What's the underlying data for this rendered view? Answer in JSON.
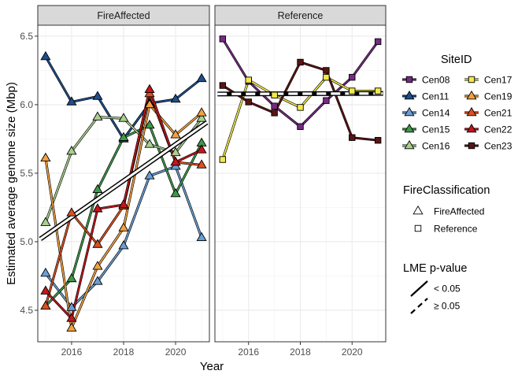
{
  "chart_data": {
    "type": "line",
    "xlabel": "Year",
    "ylabel": "Estimated average genome size (Mbp)",
    "xlim": [
      2014.7,
      2021.3
    ],
    "ylim": [
      4.27,
      6.58
    ],
    "x_ticks": [
      2016,
      2018,
      2020
    ],
    "y_ticks": [
      4.5,
      5.0,
      5.5,
      6.0,
      6.5
    ],
    "x_tick_labels": [
      "2016",
      "2018",
      "2020"
    ],
    "y_tick_labels": [
      "4.5",
      "5.0",
      "5.5",
      "6.0",
      "6.5"
    ],
    "grid": true,
    "panels": [
      {
        "name": "FireAffected",
        "shape": "triangle",
        "fit": {
          "x": [
            2014.8,
            2021.2
          ],
          "y": [
            5.02,
            5.87
          ],
          "significant": true
        },
        "series": [
          {
            "name": "Cen11",
            "x": [
              2015,
              2016,
              2017,
              2018,
              2019,
              2020,
              2021
            ],
            "y": [
              6.35,
              6.02,
              6.06,
              5.75,
              6.01,
              6.04,
              6.19
            ]
          },
          {
            "name": "Cen14",
            "x": [
              2015,
              2016,
              2017,
              2018,
              2019,
              2020,
              2021
            ],
            "y": [
              4.77,
              4.52,
              4.71,
              4.97,
              5.48,
              5.55,
              5.03
            ]
          },
          {
            "name": "Cen15",
            "x": [
              2015,
              2016,
              2017,
              2018,
              2019,
              2020,
              2021
            ],
            "y": [
              4.53,
              4.73,
              5.38,
              5.76,
              5.85,
              5.35,
              5.72
            ]
          },
          {
            "name": "Cen16",
            "x": [
              2015,
              2016,
              2017,
              2018,
              2019,
              2020,
              2021
            ],
            "y": [
              5.14,
              5.66,
              5.91,
              5.9,
              5.71,
              5.65,
              5.9
            ]
          },
          {
            "name": "Cen19",
            "x": [
              2015,
              2016,
              2017,
              2018,
              2019,
              2020,
              2021
            ],
            "y": [
              5.61,
              4.37,
              4.82,
              5.1,
              6.0,
              5.78,
              5.94
            ]
          },
          {
            "name": "Cen21",
            "x": [
              2015,
              2016,
              2017,
              2018,
              2019,
              2020,
              2021
            ],
            "y": [
              4.53,
              5.21,
              4.98,
              5.26,
              6.08,
              5.58,
              5.56
            ]
          },
          {
            "name": "Cen22",
            "x": [
              2015,
              2016,
              2017,
              2018,
              2019,
              2020,
              2021
            ],
            "y": [
              4.64,
              4.44,
              5.24,
              5.27,
              6.11,
              5.58,
              5.67
            ]
          }
        ]
      },
      {
        "name": "Reference",
        "shape": "square",
        "fit": {
          "x": [
            2014.8,
            2021.2
          ],
          "y": [
            6.078,
            6.082
          ],
          "significant": false
        },
        "series": [
          {
            "name": "Cen08",
            "x": [
              2015,
              2016,
              2017,
              2018,
              2019,
              2020,
              2021
            ],
            "y": [
              6.48,
              6.17,
              5.99,
              5.84,
              6.03,
              6.2,
              6.46
            ]
          },
          {
            "name": "Cen17",
            "x": [
              2015,
              2016,
              2017,
              2018,
              2019,
              2020,
              2021
            ],
            "y": [
              5.6,
              6.18,
              6.07,
              5.98,
              6.2,
              6.1,
              6.1
            ]
          },
          {
            "name": "Cen23",
            "x": [
              2015,
              2016,
              2017,
              2018,
              2019,
              2020,
              2021
            ],
            "y": [
              6.14,
              6.02,
              5.94,
              6.31,
              6.25,
              5.76,
              5.74
            ]
          }
        ]
      }
    ],
    "colors": {
      "Cen08": "#762a83",
      "Cen11": "#1f4e8c",
      "Cen14": "#6a9fd4",
      "Cen15": "#3d9a4a",
      "Cen16": "#a8cf8e",
      "Cen17": "#f2ea4a",
      "Cen19": "#f4a040",
      "Cen21": "#dd5020",
      "Cen22": "#c4161c",
      "Cen23": "#5a1414"
    },
    "legends": {
      "site": {
        "title": "SiteID",
        "items": [
          "Cen08",
          "Cen11",
          "Cen14",
          "Cen15",
          "Cen16",
          "Cen17",
          "Cen19",
          "Cen21",
          "Cen22",
          "Cen23"
        ]
      },
      "fire": {
        "title": "FireClassification",
        "items": [
          {
            "label": "FireAffected",
            "shape": "triangle"
          },
          {
            "label": "Reference",
            "shape": "square"
          }
        ]
      },
      "pvalue": {
        "title": "LME p-value",
        "items": [
          {
            "label": "< 0.05",
            "linetype": "solid"
          },
          {
            "label": "≥ 0.05",
            "linetype": "dashed"
          }
        ]
      }
    },
    "legend_position": "right"
  }
}
